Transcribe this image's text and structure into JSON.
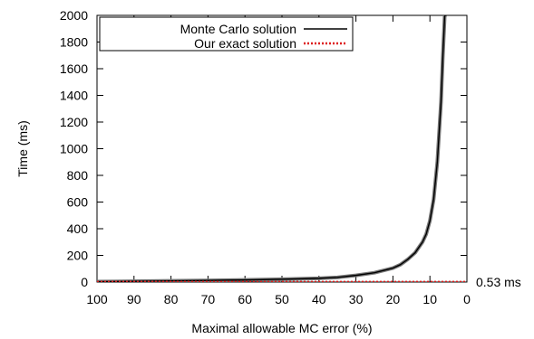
{
  "chart_data": {
    "type": "line",
    "xlabel": "Maximal allowable MC error (%)",
    "ylabel": "Time (ms)",
    "xlim": [
      100,
      0
    ],
    "ylim": [
      0,
      2000
    ],
    "x_reversed": true,
    "x_ticks": [
      100,
      90,
      80,
      70,
      60,
      50,
      40,
      30,
      20,
      10,
      0
    ],
    "y_ticks": [
      0,
      200,
      400,
      600,
      800,
      1000,
      1200,
      1400,
      1600,
      1800,
      2000
    ],
    "grid": false,
    "legend_position": "top-left",
    "series": [
      {
        "name": "Monte Carlo solution",
        "color": "#000000",
        "style": "solid",
        "x": [
          100,
          90,
          80,
          70,
          60,
          50,
          40,
          35,
          30,
          25,
          20,
          18,
          16,
          14,
          12,
          11,
          10,
          9,
          8,
          7,
          6.5,
          6,
          5.5
        ],
        "y": [
          3,
          6,
          9,
          12,
          16,
          21,
          28,
          35,
          50,
          70,
          105,
          130,
          170,
          220,
          300,
          360,
          460,
          620,
          900,
          1350,
          1700,
          2000,
          2000
        ]
      },
      {
        "name": "Our exact solution",
        "color": "#dd1c1c",
        "style": "dotted",
        "x": [
          100,
          0
        ],
        "y": [
          0.53,
          0.53
        ]
      }
    ],
    "annotations": [
      {
        "text": "0.53 ms",
        "x": 0,
        "y": 0.53
      }
    ]
  }
}
